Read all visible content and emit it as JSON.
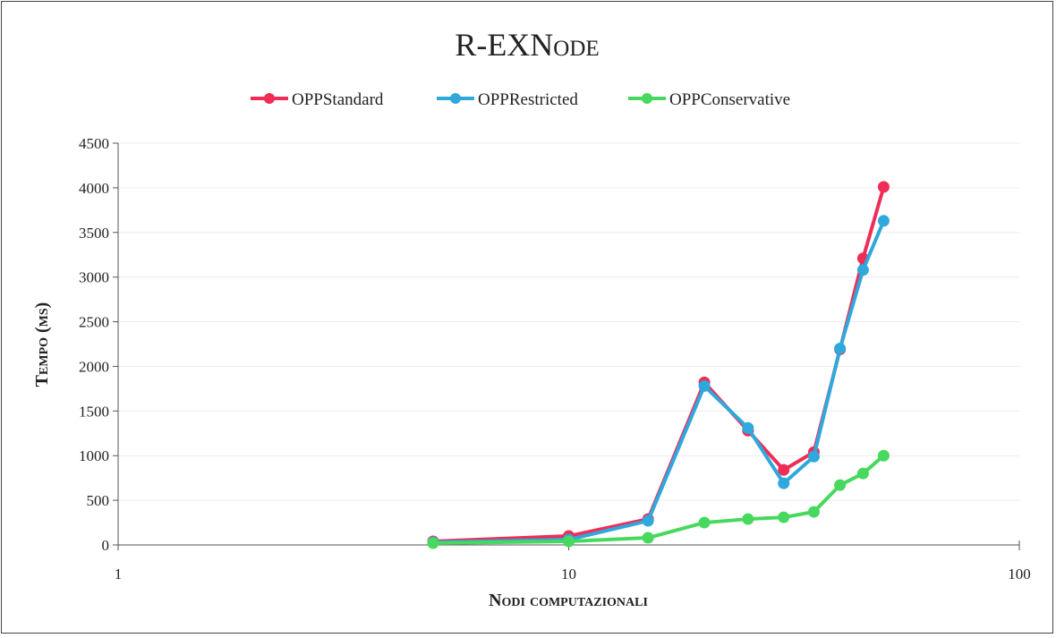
{
  "chart_data": {
    "type": "line",
    "title": "R-EXNode",
    "xlabel": "Nodi computazionali",
    "ylabel": "Tempo (ms)",
    "x_scale": "log",
    "xlim": [
      1,
      100
    ],
    "ylim": [
      0,
      4500
    ],
    "x_ticks": [
      "1",
      "10",
      "100"
    ],
    "y_ticks": [
      "0",
      "500",
      "1000",
      "1500",
      "2000",
      "2500",
      "3000",
      "3500",
      "4000",
      "4500"
    ],
    "grid": "horizontal",
    "legend_position": "top",
    "x": [
      5,
      10,
      15,
      20,
      25,
      30,
      35,
      40,
      45,
      50
    ],
    "series": [
      {
        "name": "OPPStandard",
        "color": "#ef2d56",
        "values": [
          40,
          100,
          290,
          1820,
          1280,
          840,
          1040,
          2190,
          3210,
          4010
        ]
      },
      {
        "name": "OPPRestricted",
        "color": "#2fa8dc",
        "values": [
          30,
          60,
          270,
          1780,
          1310,
          690,
          990,
          2200,
          3080,
          3630
        ]
      },
      {
        "name": "OPPConservative",
        "color": "#47d95d",
        "values": [
          20,
          40,
          80,
          250,
          290,
          310,
          370,
          670,
          800,
          1000
        ]
      }
    ]
  }
}
